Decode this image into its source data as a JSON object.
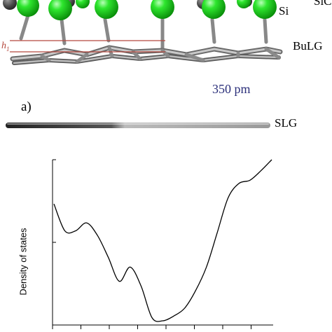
{
  "structure": {
    "label_sic": "SiC",
    "label_si": "Si",
    "label_h1": "h",
    "label_h1_sub": "1",
    "label_bulg": "BuLG",
    "annotation": "350 pm",
    "panel_label": "a)",
    "label_slg": "SLG",
    "colors": {
      "silicon": "#19d219",
      "carbon": "#aaaaaa",
      "carbon_dark": "#555555",
      "marker_line": "#b5483e",
      "annotation": "#2b2f7a"
    }
  },
  "chart_data": {
    "type": "line",
    "title": "",
    "xlabel": "",
    "ylabel": "Density of states",
    "x": [
      0,
      0.05,
      0.1,
      0.15,
      0.2,
      0.25,
      0.3,
      0.35,
      0.4,
      0.45,
      0.5,
      0.55,
      0.6,
      0.65,
      0.7,
      0.75,
      0.8,
      0.85,
      0.9,
      0.95,
      1.0
    ],
    "series": [
      {
        "values": [
          0.74,
          0.57,
          0.57,
          0.62,
          0.54,
          0.4,
          0.25,
          0.34,
          0.22,
          0.02,
          0.0,
          0.03,
          0.08,
          0.19,
          0.34,
          0.56,
          0.78,
          0.87,
          0.89,
          0.95,
          1.02
        ]
      }
    ],
    "ylim": [
      0,
      1.02
    ],
    "grid": false
  }
}
